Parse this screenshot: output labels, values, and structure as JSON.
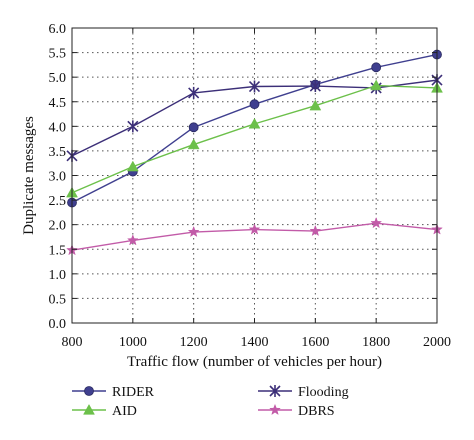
{
  "chart_data": {
    "type": "line",
    "x": [
      800,
      1000,
      1200,
      1400,
      1600,
      1800,
      2000
    ],
    "xlabel": "Traffic flow (number of vehicles per hour)",
    "ylabel": "Duplicate messages",
    "xlim": [
      800,
      2000
    ],
    "ylim": [
      0.0,
      6.0
    ],
    "xticks": [
      "800",
      "1000",
      "1200",
      "1400",
      "1600",
      "1800",
      "2000"
    ],
    "yticks": [
      "0.0",
      "0.5",
      "1.0",
      "1.5",
      "2.0",
      "2.5",
      "3.0",
      "3.5",
      "4.0",
      "4.5",
      "5.0",
      "5.5",
      "6.0"
    ],
    "grid": "dotted",
    "legend_position": "bottom",
    "series": [
      {
        "name": "RIDER",
        "marker": "circle",
        "color": "#3f3f8f",
        "values": [
          2.45,
          3.08,
          3.98,
          4.45,
          4.85,
          5.2,
          5.46
        ]
      },
      {
        "name": "Flooding",
        "marker": "x-star",
        "color": "#3c2f78",
        "values": [
          3.4,
          4.0,
          4.68,
          4.81,
          4.82,
          4.78,
          4.94
        ]
      },
      {
        "name": "AID",
        "marker": "triangle",
        "color": "#6cc04a",
        "values": [
          2.65,
          3.18,
          3.63,
          4.05,
          4.42,
          4.83,
          4.78
        ]
      },
      {
        "name": "DBRS",
        "marker": "star",
        "color": "#c25ba8",
        "values": [
          1.48,
          1.68,
          1.85,
          1.9,
          1.87,
          2.03,
          1.9
        ]
      }
    ]
  }
}
